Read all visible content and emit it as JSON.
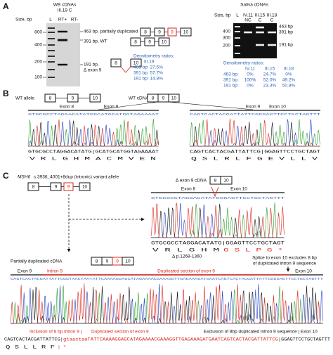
{
  "panel_labels": [
    "A",
    "B",
    "C"
  ],
  "exons": [
    "8",
    "9",
    "10"
  ],
  "panel_a": {
    "wb": {
      "title": "WB cDNAs",
      "sample": "III.19 C",
      "size_header": "Size, bp",
      "lanes": [
        "L",
        "RT+",
        "RT-"
      ],
      "sizes": [
        "800",
        "400",
        "200",
        "100"
      ],
      "bands": [
        "463 bp, partially duplicated",
        "391 bp, WT",
        "191 bp,",
        "Δ exon 9"
      ],
      "densitometry": {
        "title": "Densitometry ratios:",
        "sample": "III.19",
        "rows": [
          "463 bp: 27.5%",
          "391 bp: 57.7%",
          "191 bp: 14.8%"
        ]
      }
    },
    "saliva": {
      "title": "Saliva cDNAs",
      "size_header": "Size, bp",
      "lanes": [
        "L",
        "IV.11",
        "III.15",
        "III.18"
      ],
      "controls": [
        "NC",
        "C",
        "C"
      ],
      "sizes": [
        "400",
        "300",
        "200"
      ],
      "bands": [
        "463 bp",
        "391 bp",
        "191 bp"
      ],
      "densitometry": {
        "title": "Densitometry ratios:",
        "samples": [
          "IV.11",
          "III.15",
          "III.18"
        ],
        "rows": [
          [
            "463 bp:",
            "0%",
            "24.7%",
            "0%"
          ],
          [
            "391 bp:",
            "100%",
            "52.0%",
            "49.2%"
          ],
          [
            "191 bp:",
            "0%",
            "23.3%",
            "50.8%"
          ]
        ]
      }
    }
  },
  "panel_b": {
    "wt_allele": "WT allele",
    "wt_cdna": "WT cDNA",
    "left": {
      "exons": [
        "Exon 8",
        "Exon 9"
      ],
      "calls": "GTGCGCCTAGGACATATGGCATGCATGGTAGAAAAT",
      "sequence": "GTGCGCCTAGGACATATG|GCATGCATGGTAGAAAAT",
      "protein": "V  R  L  G  H  M  A  C  M  V  E  N"
    },
    "right": {
      "exons": [
        "Exon 9",
        "Exon 10"
      ],
      "calls": "CAGTCACTACGATTATTCGGGAGTTCCTGCTAGTTT",
      "sequence": "CAGTCACTACGATTATTCG|GGAGTTCCTGCTAGT",
      "protein": "Q  S  L  R  L  F  G  E  V  L  L  V"
    }
  },
  "panel_c": {
    "gene": "MSH6",
    "variant": "c.3936_4001+8dup (intronic) variant allele",
    "delta": {
      "title": "Δ exon 9 cDNA",
      "exons": [
        "Exon 8",
        "Exon 10"
      ],
      "calls": "GTGCGCCTAGGACATATGGGAGTTCCTGCTAGTTT",
      "sequence": "GTGCGCCTAGGACATATG|GGAGTTCCTGCTAGT",
      "protein": "V  R  L  G  H  M",
      "protein_alt": "G  S  L  P  G  *",
      "deletion": "Δ p.1268-1360"
    },
    "dup": {
      "title": "Partially duplicated cDNA",
      "note": [
        "Splice to exon 10 excludes 8 bp",
        "of duplicated intron 9 sequence"
      ],
      "regions": [
        "Exon 9",
        "Intron 9",
        "Duplicated section of exon 9",
        "Exon 10"
      ],
      "calls": "CAGTCACTACGATTATTCGGTAACTAATATTCAAAAGGAGCATAGAAAACGAAAGGTTGAGAAAGATGAATCAGTCACTACGATTATTCGGGAGTTCCTGCTAGTTT",
      "annotations": [
        "Inclusion of 8 bp intron 9 |",
        "Duplicated section of exon 9",
        "Exclusion of 8bp duplicated intron 9 sequence | Exon 10"
      ],
      "sequence": [
        "CAGTCACTACGATTATTCG|",
        "gtaactaaTATTCAAAAGGAGCATAGAAAACGAAAGGTTGAGAAAGATGAATCAGTCACTACGATTATTCG",
        "|GGAGTTCCTGCTAGTTT"
      ],
      "protein": "Q  S  L  L  R  F",
      "protein_alt": "| *"
    }
  }
}
